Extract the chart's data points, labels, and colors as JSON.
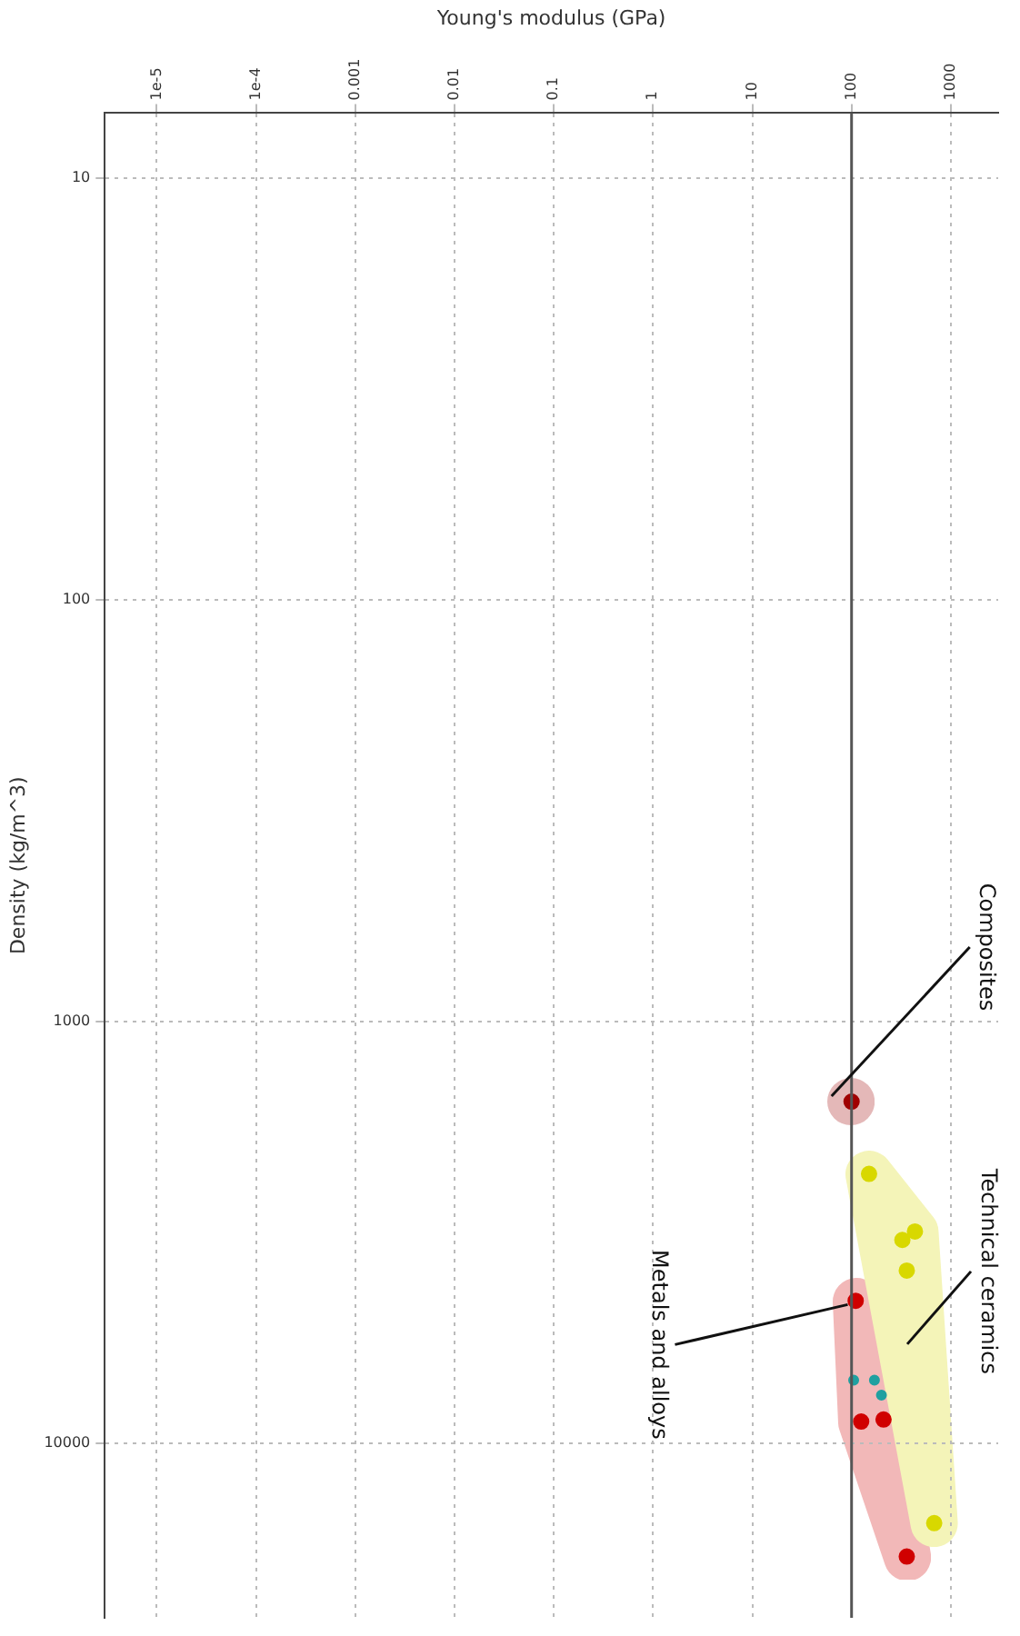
{
  "chart_data": {
    "type": "scatter",
    "xlabel": "Young's modulus (GPa)",
    "ylabel": "Density (kg/m^3)",
    "log": "xy",
    "grid": true,
    "legend": false,
    "marker": "circle",
    "xlim": [
      3e-06,
      3000
    ],
    "ylim": [
      26000,
      7
    ],
    "xticks": [
      {
        "value": 1e-05,
        "label": "1e-5"
      },
      {
        "value": 0.0001,
        "label": "1e-4"
      },
      0.001,
      0.01,
      0.1,
      1,
      10,
      100,
      1000
    ],
    "yticks": [
      10,
      100,
      1000,
      10000
    ],
    "ref_lines": [
      {
        "axis": "x",
        "value": 100,
        "color": "#555555",
        "line_style": "solid"
      }
    ],
    "series": [
      {
        "name": "Composites",
        "color": "#a00000",
        "x": [
          100
        ],
        "values": [
          1550
        ]
      },
      {
        "name": "Metals and alloys",
        "color": "#d00000",
        "x": [
          110,
          125,
          210,
          360
        ],
        "values": [
          4600,
          8900,
          8800,
          18600
        ]
      },
      {
        "name": "Technical ceramics",
        "color": "#d8d800",
        "x": [
          150,
          435,
          325,
          360,
          680
        ],
        "values": [
          2300,
          3150,
          3300,
          3900,
          15500
        ]
      },
      {
        "color": "#20a0a0",
        "x": [
          105,
          170,
          200
        ],
        "values": [
          7100,
          7100,
          7700
        ]
      }
    ]
  }
}
